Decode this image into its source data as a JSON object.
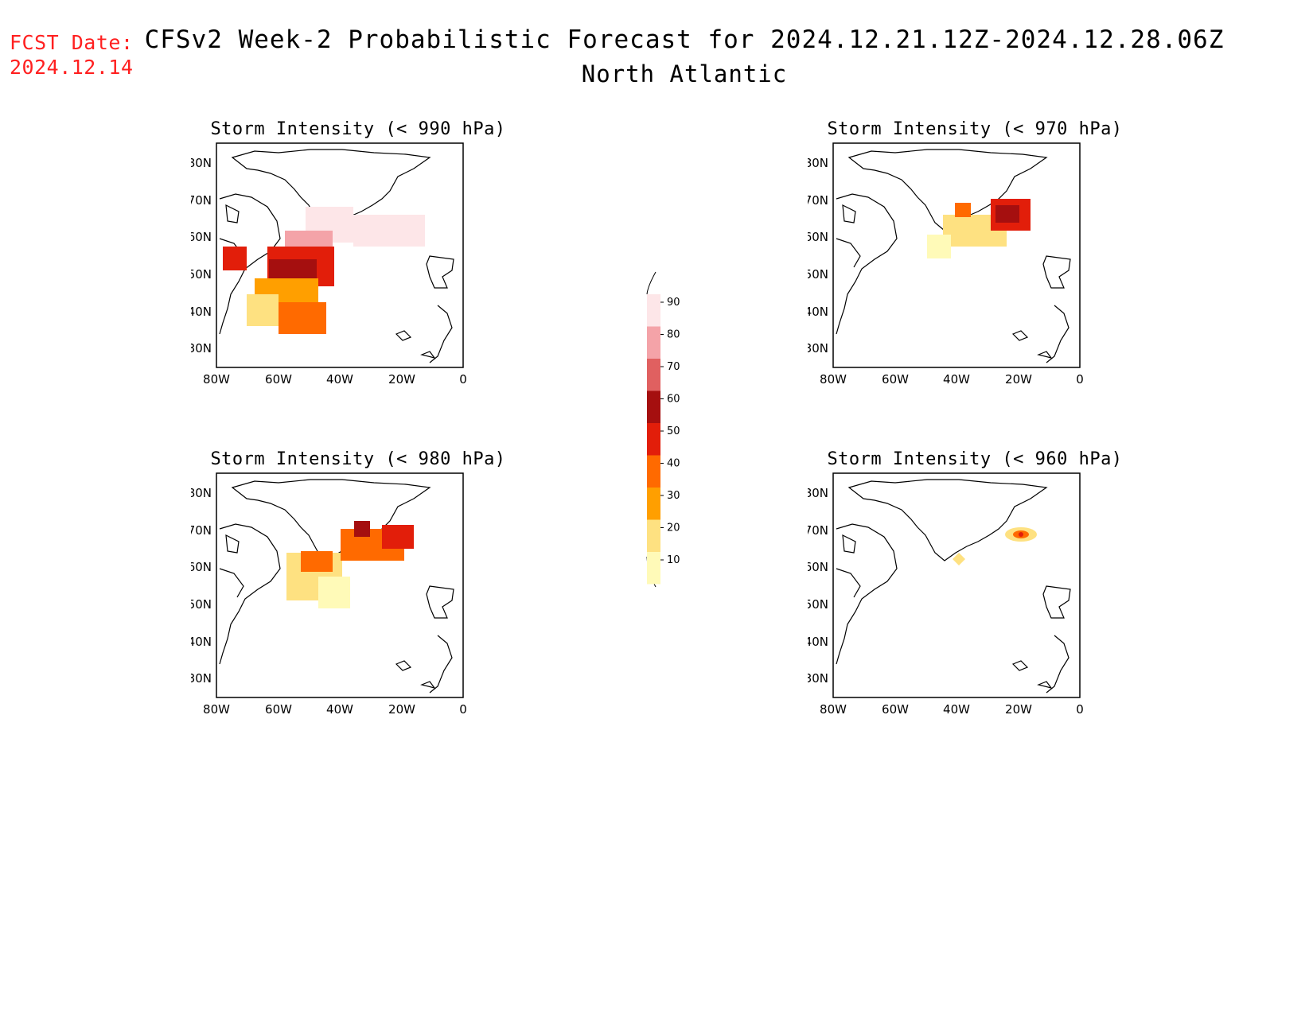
{
  "header": {
    "fcst_label": "FCST Date:",
    "fcst_date": "2024.12.14",
    "title": "CFSv2 Week-2 Probabilistic Forecast for 2024.12.21.12Z-2024.12.28.06Z",
    "subtitle": "North Atlantic"
  },
  "panels": [
    {
      "id": "p990",
      "title": "Storm Intensity (< 990 hPa)"
    },
    {
      "id": "p970",
      "title": "Storm Intensity (< 970 hPa)"
    },
    {
      "id": "p980",
      "title": "Storm Intensity (< 980 hPa)"
    },
    {
      "id": "p960",
      "title": "Storm Intensity (< 960 hPa)"
    }
  ],
  "axes": {
    "lat_labels": [
      "80N",
      "70N",
      "60N",
      "50N",
      "40N",
      "30N"
    ],
    "lon_labels": [
      "80W",
      "60W",
      "40W",
      "20W",
      "0"
    ]
  },
  "colorbar": {
    "labels": [
      "90",
      "80",
      "70",
      "60",
      "50",
      "40",
      "30",
      "20",
      "10"
    ],
    "colors": [
      "#fde6e8",
      "#f4a3a8",
      "#e06060",
      "#a50f0f",
      "#e21e0a",
      "#ff6a00",
      "#ff9f00",
      "#fee181",
      "#fffab8"
    ]
  }
}
